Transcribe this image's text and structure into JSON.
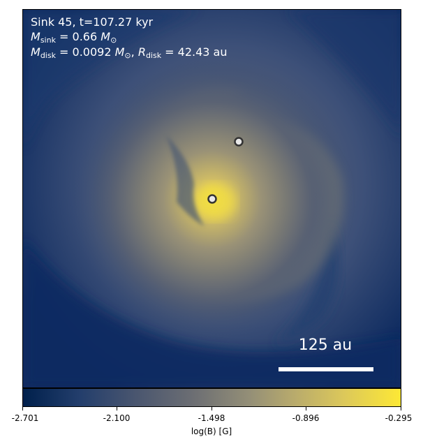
{
  "figure": {
    "title_line": "Sink 45, t=107.27 kyr",
    "msink_symbol": "M",
    "msink_sub": "sink",
    "msink_value": " = 0.66",
    "mdisk_symbol": "M",
    "mdisk_sub": "disk",
    "mdisk_value": " = 0.0092",
    "msun": "M",
    "msun_sub": "⊙",
    "rdisk_symbol": "R",
    "rdisk_sub": "disk",
    "rdisk_value": " = 42.43 au",
    "scale_bar_label": "125 au"
  },
  "colorbar": {
    "label": "log(B) [G]",
    "ticks": [
      "-2.701",
      "-2.100",
      "-1.498",
      "-0.896",
      "-0.295"
    ],
    "colormap_colors": [
      "#00204c",
      "#6c6e73",
      "#fde835"
    ]
  },
  "sinks": [
    {
      "name": "primary"
    },
    {
      "name": "secondary"
    }
  ]
}
